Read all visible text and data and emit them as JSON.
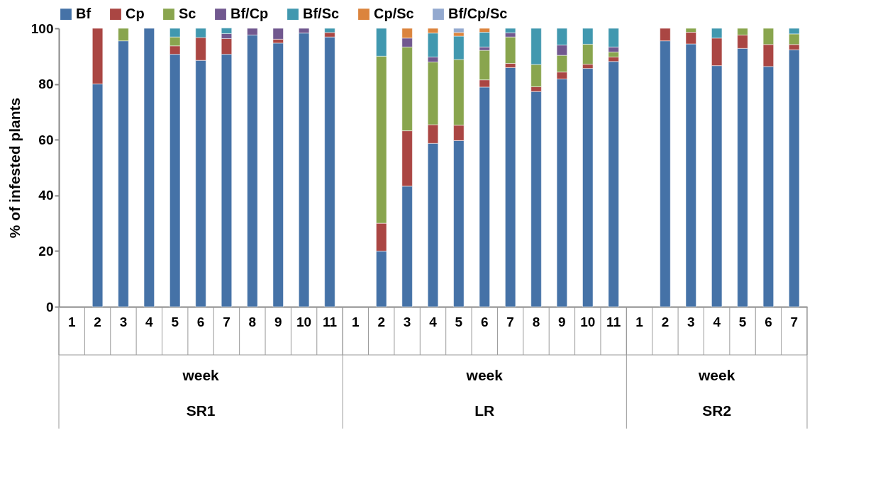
{
  "chart_data": {
    "type": "bar",
    "stacked": true,
    "ylabel": "% of infested plants",
    "categories": [
      "1",
      "2",
      "3",
      "4",
      "5",
      "6",
      "7",
      "8",
      "9",
      "10",
      "11",
      "1",
      "2",
      "3",
      "4",
      "5",
      "6",
      "7",
      "8",
      "9",
      "10",
      "11",
      "1",
      "2",
      "3",
      "4",
      "5",
      "6",
      "7"
    ],
    "annotations": [
      "week",
      "SR1",
      "week",
      "LR",
      "week",
      "SR2"
    ],
    "series": [
      {
        "name": "Bf",
        "color": "#4572a7",
        "values": [
          null,
          80,
          95.5,
          100,
          90.7,
          88.5,
          90.7,
          97.6,
          94.7,
          98.3,
          96.9,
          null,
          20,
          43.3,
          58.7,
          59.7,
          78.9,
          85.9,
          77.3,
          81.8,
          85.6,
          88.1,
          null,
          95.5,
          94.4,
          86.6,
          92.8,
          86.3,
          92.3
        ]
      },
      {
        "name": "Cp",
        "color": "#aa4643",
        "values": [
          null,
          20,
          null,
          null,
          3,
          8.2,
          5.6,
          null,
          1.4,
          null,
          1.6,
          null,
          10,
          19.9,
          6.7,
          5.5,
          2.6,
          1.5,
          1.7,
          2.5,
          1.5,
          1.6,
          null,
          4.5,
          4.2,
          9.9,
          4.8,
          7.9,
          1.9
        ]
      },
      {
        "name": "Sc",
        "color": "#89a54e",
        "values": [
          null,
          null,
          4.5,
          null,
          3.2,
          null,
          null,
          null,
          null,
          null,
          null,
          null,
          60,
          30.1,
          22.5,
          23.6,
          10.6,
          9.5,
          8,
          6,
          7.2,
          1.8,
          null,
          null,
          1.4,
          null,
          2.4,
          5.8,
          3.8
        ]
      },
      {
        "name": "Bf/Cp",
        "color": "#71588f",
        "values": [
          null,
          null,
          null,
          null,
          null,
          null,
          1.8,
          2.4,
          3.9,
          1.7,
          null,
          null,
          null,
          3.2,
          1.8,
          null,
          1.2,
          1.5,
          null,
          3.7,
          null,
          1.8,
          null,
          null,
          null,
          null,
          null,
          null,
          null
        ]
      },
      {
        "name": "Bf/Sc",
        "color": "#4198af",
        "values": [
          null,
          null,
          null,
          null,
          3.1,
          3.3,
          2,
          null,
          null,
          null,
          1.5,
          null,
          10,
          null,
          8.6,
          8.4,
          5.3,
          1.6,
          13,
          6,
          5.7,
          6.7,
          null,
          null,
          null,
          3.5,
          null,
          null,
          2
        ]
      },
      {
        "name": "Cp/Sc",
        "color": "#db843d",
        "values": [
          null,
          null,
          null,
          null,
          null,
          null,
          null,
          null,
          null,
          null,
          null,
          null,
          null,
          3.5,
          1.7,
          1.3,
          1.4,
          null,
          null,
          null,
          null,
          null,
          null,
          null,
          null,
          null,
          null,
          null,
          null
        ]
      },
      {
        "name": "Bf/Cp/Sc",
        "color": "#93a9cf",
        "values": [
          null,
          null,
          null,
          null,
          null,
          null,
          null,
          null,
          null,
          null,
          null,
          null,
          null,
          null,
          null,
          1.5,
          null,
          null,
          null,
          null,
          null,
          null,
          null,
          null,
          null,
          null,
          null,
          null,
          null
        ]
      }
    ],
    "ylim": [
      0,
      100
    ],
    "yticks": [
      0,
      20,
      40,
      60,
      80,
      100
    ],
    "grid": false,
    "legend": "top"
  }
}
